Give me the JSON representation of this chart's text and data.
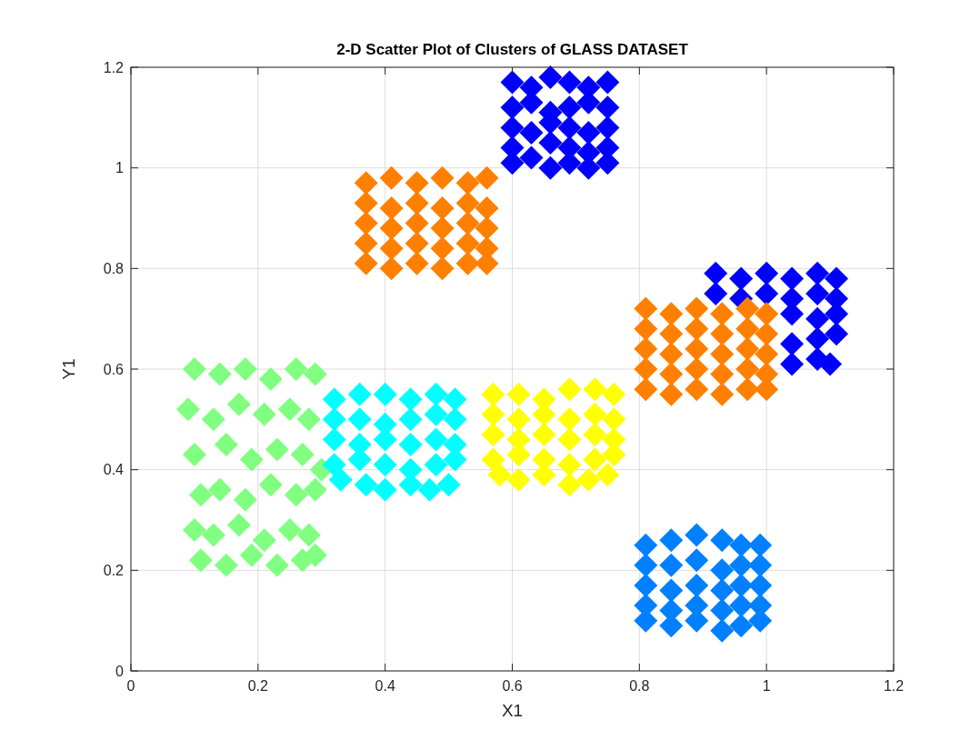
{
  "chart_data": {
    "type": "scatter",
    "title": "2-D Scatter Plot of Clusters of GLASS DATASET",
    "xlabel": "X1",
    "ylabel": "Y1",
    "xlim": [
      0,
      1.2
    ],
    "ylim": [
      0,
      1.2
    ],
    "xticks": [
      0,
      0.2,
      0.4,
      0.6,
      0.8,
      1,
      1.2
    ],
    "yticks": [
      0,
      0.2,
      0.4,
      0.6,
      0.8,
      1,
      1.2
    ],
    "grid": true,
    "marker": "diamond",
    "series": [
      {
        "color": "#0000ff",
        "x": [
          0.6,
          0.63,
          0.66,
          0.69,
          0.72,
          0.75,
          0.6,
          0.63,
          0.66,
          0.69,
          0.72,
          0.75,
          0.6,
          0.63,
          0.66,
          0.69,
          0.72,
          0.75,
          0.6,
          0.66,
          0.69,
          0.72,
          0.75,
          0.6,
          0.63,
          0.66,
          0.69,
          0.72,
          0.75,
          0.92,
          0.96,
          1.0,
          1.04,
          1.08,
          1.11,
          0.92,
          0.96,
          1.0,
          1.04,
          1.08,
          1.11,
          1.04,
          1.08,
          1.11,
          1.04,
          1.08,
          1.11,
          1.04,
          1.08,
          1.1
        ],
        "values": [
          1.17,
          1.16,
          1.18,
          1.17,
          1.16,
          1.17,
          1.12,
          1.13,
          1.11,
          1.12,
          1.13,
          1.12,
          1.08,
          1.07,
          1.09,
          1.08,
          1.07,
          1.08,
          1.04,
          1.05,
          1.04,
          1.03,
          1.04,
          1.01,
          1.02,
          1.0,
          1.01,
          1.0,
          1.01,
          0.79,
          0.78,
          0.79,
          0.78,
          0.79,
          0.78,
          0.75,
          0.74,
          0.75,
          0.74,
          0.75,
          0.74,
          0.71,
          0.7,
          0.71,
          0.65,
          0.66,
          0.67,
          0.61,
          0.62,
          0.61
        ]
      },
      {
        "color": "#0080ff",
        "x": [
          0.81,
          0.85,
          0.89,
          0.93,
          0.96,
          0.99,
          0.81,
          0.85,
          0.89,
          0.93,
          0.96,
          0.99,
          0.81,
          0.85,
          0.89,
          0.93,
          0.96,
          0.99,
          0.81,
          0.85,
          0.89,
          0.93,
          0.96,
          0.99,
          0.81,
          0.85,
          0.89,
          0.93,
          0.96,
          0.99
        ],
        "values": [
          0.25,
          0.26,
          0.27,
          0.26,
          0.25,
          0.25,
          0.21,
          0.21,
          0.22,
          0.2,
          0.21,
          0.21,
          0.17,
          0.16,
          0.17,
          0.16,
          0.17,
          0.17,
          0.13,
          0.12,
          0.13,
          0.12,
          0.13,
          0.13,
          0.1,
          0.09,
          0.1,
          0.08,
          0.09,
          0.1
        ]
      },
      {
        "color": "#80ff80",
        "x": [
          0.1,
          0.14,
          0.18,
          0.22,
          0.26,
          0.29,
          0.09,
          0.13,
          0.17,
          0.21,
          0.25,
          0.28,
          0.1,
          0.15,
          0.19,
          0.23,
          0.27,
          0.3,
          0.11,
          0.14,
          0.18,
          0.22,
          0.26,
          0.29,
          0.1,
          0.13,
          0.17,
          0.21,
          0.25,
          0.28,
          0.11,
          0.15,
          0.19,
          0.23,
          0.27,
          0.29
        ],
        "values": [
          0.6,
          0.59,
          0.6,
          0.58,
          0.6,
          0.59,
          0.52,
          0.5,
          0.53,
          0.51,
          0.52,
          0.5,
          0.43,
          0.45,
          0.42,
          0.44,
          0.43,
          0.4,
          0.35,
          0.36,
          0.34,
          0.37,
          0.35,
          0.36,
          0.28,
          0.27,
          0.29,
          0.26,
          0.28,
          0.27,
          0.22,
          0.21,
          0.23,
          0.21,
          0.22,
          0.23
        ]
      },
      {
        "color": "#00ffff",
        "x": [
          0.32,
          0.36,
          0.4,
          0.44,
          0.48,
          0.51,
          0.32,
          0.36,
          0.4,
          0.44,
          0.48,
          0.51,
          0.32,
          0.36,
          0.4,
          0.44,
          0.48,
          0.51,
          0.32,
          0.36,
          0.4,
          0.44,
          0.48,
          0.51,
          0.33,
          0.37,
          0.4,
          0.44,
          0.47,
          0.5
        ],
        "values": [
          0.54,
          0.55,
          0.55,
          0.54,
          0.55,
          0.54,
          0.5,
          0.5,
          0.49,
          0.5,
          0.51,
          0.5,
          0.46,
          0.45,
          0.46,
          0.45,
          0.46,
          0.45,
          0.41,
          0.42,
          0.41,
          0.4,
          0.41,
          0.42,
          0.38,
          0.37,
          0.36,
          0.37,
          0.36,
          0.37
        ]
      },
      {
        "color": "#ffff00",
        "x": [
          0.57,
          0.61,
          0.65,
          0.69,
          0.73,
          0.76,
          0.57,
          0.61,
          0.65,
          0.69,
          0.73,
          0.76,
          0.57,
          0.61,
          0.65,
          0.69,
          0.73,
          0.76,
          0.57,
          0.61,
          0.65,
          0.69,
          0.73,
          0.76,
          0.58,
          0.61,
          0.65,
          0.69,
          0.72,
          0.75
        ],
        "values": [
          0.55,
          0.55,
          0.54,
          0.56,
          0.56,
          0.55,
          0.51,
          0.5,
          0.51,
          0.5,
          0.51,
          0.5,
          0.47,
          0.46,
          0.47,
          0.46,
          0.47,
          0.46,
          0.42,
          0.43,
          0.42,
          0.41,
          0.42,
          0.43,
          0.39,
          0.38,
          0.39,
          0.37,
          0.38,
          0.39
        ]
      },
      {
        "color": "#ff8000",
        "x": [
          0.37,
          0.41,
          0.45,
          0.49,
          0.53,
          0.56,
          0.37,
          0.41,
          0.45,
          0.49,
          0.53,
          0.56,
          0.37,
          0.41,
          0.45,
          0.49,
          0.53,
          0.56,
          0.37,
          0.41,
          0.45,
          0.49,
          0.53,
          0.56,
          0.37,
          0.41,
          0.45,
          0.49,
          0.53,
          0.56,
          0.81,
          0.85,
          0.89,
          0.93,
          0.97,
          1.0,
          0.81,
          0.85,
          0.89,
          0.93,
          0.97,
          1.0,
          0.81,
          0.85,
          0.89,
          0.93,
          0.97,
          1.0,
          0.81,
          0.85,
          0.89,
          0.93,
          0.97,
          1.0,
          0.81,
          0.85,
          0.89,
          0.93,
          0.97,
          1.0
        ],
        "values": [
          0.97,
          0.98,
          0.97,
          0.98,
          0.97,
          0.98,
          0.93,
          0.92,
          0.93,
          0.92,
          0.93,
          0.92,
          0.89,
          0.88,
          0.89,
          0.88,
          0.89,
          0.88,
          0.85,
          0.84,
          0.85,
          0.84,
          0.85,
          0.84,
          0.81,
          0.8,
          0.81,
          0.8,
          0.81,
          0.81,
          0.72,
          0.71,
          0.72,
          0.71,
          0.72,
          0.71,
          0.68,
          0.67,
          0.68,
          0.67,
          0.68,
          0.67,
          0.64,
          0.63,
          0.64,
          0.63,
          0.64,
          0.63,
          0.6,
          0.59,
          0.6,
          0.59,
          0.6,
          0.59,
          0.56,
          0.55,
          0.56,
          0.55,
          0.56,
          0.56
        ]
      }
    ]
  }
}
